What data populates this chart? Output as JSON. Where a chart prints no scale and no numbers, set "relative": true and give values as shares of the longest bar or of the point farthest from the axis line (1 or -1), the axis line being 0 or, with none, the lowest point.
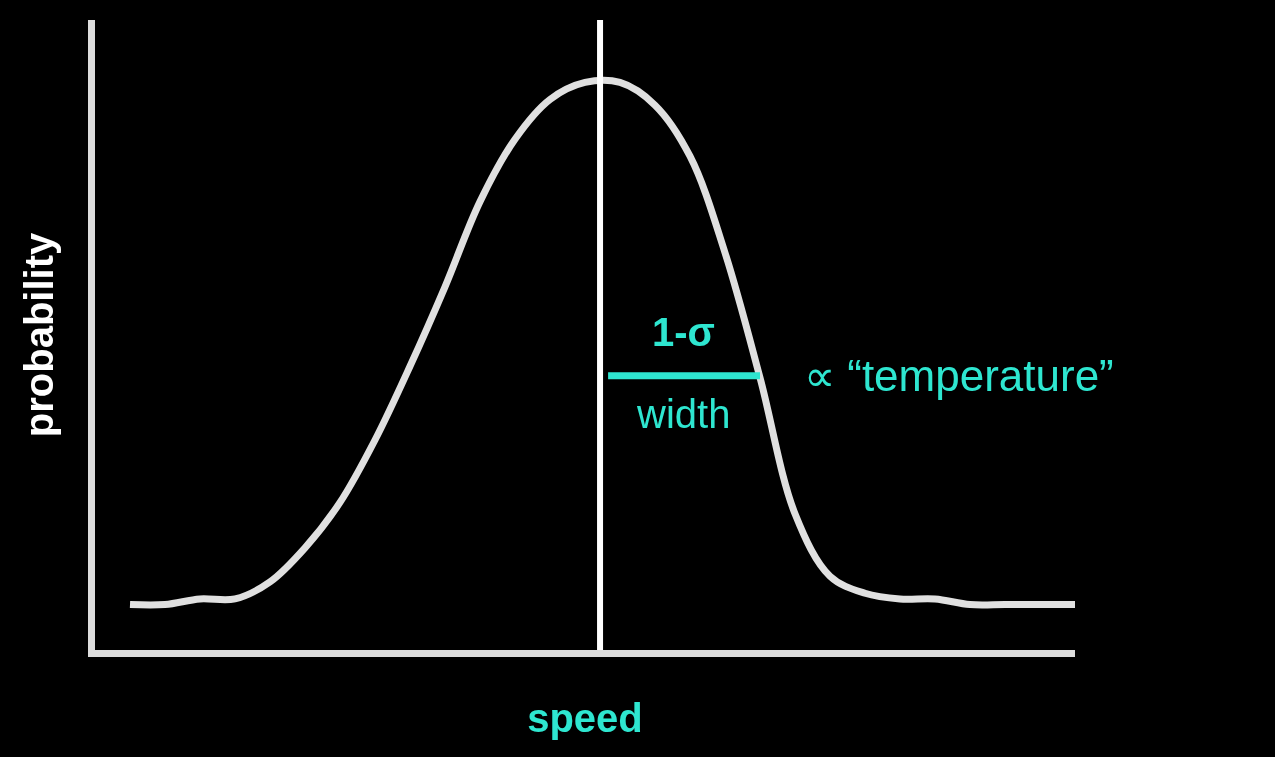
{
  "chart_data": {
    "type": "line",
    "relative": true,
    "xlabel": "speed",
    "ylabel": "probability",
    "categories": [
      null,
      null,
      null,
      null,
      null,
      null,
      null,
      null,
      null,
      null,
      null,
      null,
      null,
      null,
      null,
      null,
      null,
      null,
      null,
      null,
      null,
      null,
      null,
      null,
      null,
      null,
      null,
      null
    ],
    "series": [
      {
        "color": "#e0e0e0",
        "values": [
          0.08,
          0.08,
          0.09,
          0.09,
          0.12,
          0.18,
          0.26,
          0.37,
          0.5,
          0.64,
          0.79,
          0.9,
          0.97,
          1.0,
          1.0,
          0.96,
          0.87,
          0.7,
          0.48,
          0.24,
          0.13,
          0.1,
          0.09,
          0.09,
          0.08,
          0.08,
          0.08,
          0.08
        ]
      }
    ],
    "annotations": [
      "1-σ",
      "width",
      "∝ “temperature”"
    ],
    "tick_labels": false,
    "grid": false,
    "marker": "none",
    "line_style": "solid"
  }
}
